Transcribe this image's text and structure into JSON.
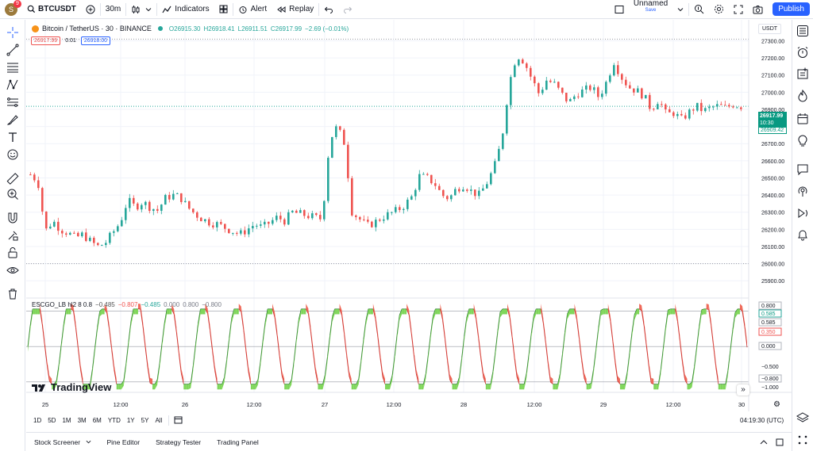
{
  "header": {
    "avatar_letter": "S",
    "notification_count": "9",
    "symbol": "BTCUSDT",
    "interval": "30m",
    "indicators_label": "Indicators",
    "alert_label": "Alert",
    "replay_label": "Replay",
    "layout_name": "Unnamed",
    "layout_status": "Save",
    "publish_label": "Publish"
  },
  "legend": {
    "title": "Bitcoin / TetherUS · 30 · BINANCE",
    "open": "O26915.30",
    "high": "H26918.41",
    "low": "L26911.51",
    "close": "C26917.99",
    "change": "−2.69 (−0.01%)",
    "bid": "26917.99",
    "spread": "0.01",
    "ask": "26918.00"
  },
  "indicator_legend": {
    "name": "ESCGO_LB hl2 8 0.8",
    "v1": "−0.485",
    "v2": "−0.807",
    "v3": "−0.485",
    "v4": "0.000",
    "v5": "0.800",
    "v6": "−0.800"
  },
  "currency": "USDT",
  "last_price": {
    "price": "26917.99",
    "countdown": "10:30",
    "second": "26909.42"
  },
  "indicator_scale": {
    "labels": [
      "0.800",
      "0.585",
      "0.585",
      "0.350",
      "0.000",
      "−0.500",
      "−0.800",
      "−1.000"
    ],
    "badges": [
      {
        "text": "0.800",
        "style": "plain"
      },
      {
        "text": "0.585",
        "style": "green"
      },
      {
        "text": "0.585",
        "style": "plain"
      },
      {
        "text": "0.350",
        "style": "red"
      },
      {
        "text": "0.000",
        "style": "plain"
      },
      {
        "text": "−0.500",
        "style": "none"
      },
      {
        "text": "−0.800",
        "style": "plain"
      },
      {
        "text": "−1.000",
        "style": "none"
      }
    ]
  },
  "price_axis_labels": [
    "27300.00",
    "27200.00",
    "27100.00",
    "27000.00",
    "26900.00",
    "26800.00",
    "26700.00",
    "26600.00",
    "26500.00",
    "26400.00",
    "26300.00",
    "26200.00",
    "26100.00",
    "26000.00",
    "25900.00"
  ],
  "time_axis_labels": [
    "25",
    "12:00",
    "26",
    "12:00",
    "27",
    "12:00",
    "28",
    "12:00",
    "29",
    "12:00",
    "30"
  ],
  "range_buttons": [
    "1D",
    "5D",
    "1M",
    "3M",
    "6M",
    "YTD",
    "1Y",
    "5Y",
    "All"
  ],
  "clock": "04:19:30 (UTC)",
  "watermark": "TradingView",
  "bottom_tabs": [
    "Stock Screener",
    "Pine Editor",
    "Strategy Tester",
    "Trading Panel"
  ],
  "colors": {
    "up": "#26a69a",
    "down": "#ef5350",
    "osc_fill_green": "#7fd65a",
    "osc_fill_red": "#ef6a5a",
    "accent": "#2962ff"
  },
  "chart_data": {
    "type": "candlestick",
    "symbol": "BTCUSDT",
    "ylim": [
      25850,
      27330
    ],
    "last_price": 26917.99,
    "close_series": [
      26520,
      26480,
      26190,
      26250,
      26200,
      26180,
      26150,
      26170,
      26130,
      26100,
      26120,
      26180,
      26240,
      26370,
      26330,
      26360,
      26330,
      26310,
      26380,
      26400,
      26390,
      26330,
      26290,
      26260,
      26240,
      26230,
      26210,
      26190,
      26170,
      26200,
      26230,
      26210,
      26240,
      26270,
      26250,
      26300,
      26290,
      26280,
      26270,
      26260,
      26720,
      26800,
      26700,
      26300,
      26260,
      26220,
      26240,
      26270,
      26290,
      26310,
      26340,
      26390,
      26510,
      26500,
      26470,
      26400,
      26380,
      26440,
      26460,
      26420,
      26400,
      26470,
      26560,
      26720,
      27050,
      27220,
      27180,
      27080,
      26990,
      27070,
      27050,
      26990,
      26940,
      26990,
      27010,
      27030,
      26970,
      27060,
      27180,
      27090,
      27030,
      27010,
      26980,
      26900,
      26960,
      26870,
      26880,
      26840,
      26880,
      26920,
      26890,
      26910,
      26920,
      26910,
      26930,
      26918
    ],
    "oscillator": {
      "name": "ESCGO_LB",
      "levels": [
        0.8,
        0.0,
        -0.8
      ],
      "ylim": [
        -1.0,
        0.9
      ]
    }
  }
}
